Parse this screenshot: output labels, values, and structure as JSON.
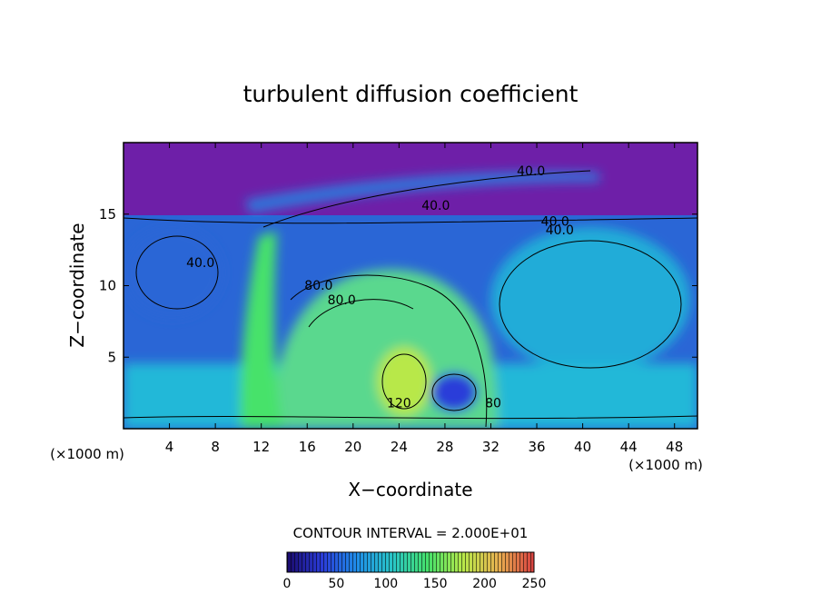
{
  "chart_data": {
    "type": "heatmap",
    "title": "turbulent diffusion coefficient",
    "xlabel": "X−coordinate",
    "ylabel": "Z−coordinate",
    "x_unit_label": "(×1000 m)",
    "y_unit_label": "(×1000 m)",
    "xlim": [
      0,
      50
    ],
    "ylim": [
      0,
      20
    ],
    "x_ticks": [
      4,
      8,
      12,
      16,
      20,
      24,
      28,
      32,
      36,
      40,
      44,
      48
    ],
    "y_ticks": [
      5,
      10,
      15
    ],
    "contour_interval_text": "CONTOUR INTERVAL = 2.000E+01",
    "contour_interval": 20,
    "colorbar": {
      "min": 0,
      "max": 250,
      "ticks": [
        0,
        50,
        100,
        150,
        200,
        250
      ],
      "colormap": [
        "#1a0a6b",
        "#2a3cd9",
        "#1f8fe8",
        "#29c6c6",
        "#46e26a",
        "#b8e84a",
        "#e8b050",
        "#d84040"
      ]
    },
    "background_colors": {
      "upper_layer": "#6e1fa8",
      "middle_layer": "#2a66d6",
      "lower_layer": "#22b8d8",
      "plume": "#5ad88e"
    },
    "contour_labels": [
      {
        "text": "40.0",
        "x": 35.5,
        "y": 17.7
      },
      {
        "text": "40.0",
        "x": 27.2,
        "y": 15.3
      },
      {
        "text": "40.0",
        "x": 37.6,
        "y": 14.2
      },
      {
        "text": "40.0",
        "x": 38.0,
        "y": 13.6
      },
      {
        "text": "40.0",
        "x": 6.7,
        "y": 11.3
      },
      {
        "text": "80.0",
        "x": 17.0,
        "y": 9.7
      },
      {
        "text": "80.0",
        "x": 19.0,
        "y": 8.7
      },
      {
        "text": "120",
        "x": 24.0,
        "y": 1.5
      },
      {
        "text": "80",
        "x": 32.2,
        "y": 1.5
      }
    ]
  }
}
